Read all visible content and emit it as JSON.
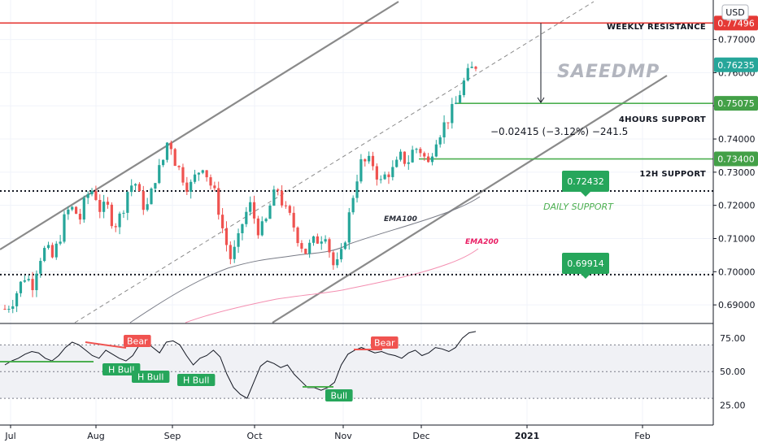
{
  "currency": "USD",
  "watermark": "SAEEDMP",
  "colors": {
    "bull": "#26a69a",
    "bear": "#ef5350",
    "resistance": "#e53935",
    "support": "#4caf50",
    "channel": "#8a8a8a",
    "ema100": "#787b86",
    "ema200": "#f48fb1",
    "rsi": "#131722",
    "tag_green": "#26a65b",
    "tag_red": "#f05350"
  },
  "levels": {
    "weekly_resistance": {
      "label": "WEEKLY RESISTANCE",
      "price_label": "0.77496",
      "value": 0.77496
    },
    "four_hours_support": {
      "label": "4HOURS SUPPORT",
      "price_label": "0.75075",
      "value": 0.75075
    },
    "twelve_h_support": {
      "label": "12H SUPPORT",
      "price_label": "0.73400",
      "value": 0.734
    },
    "last_price": {
      "price_label": "0.76235",
      "value": 0.76235
    },
    "daily_support": {
      "label": "DAILY SUPPORT",
      "tag": "0.72432",
      "value": 0.72432
    },
    "lower_support": {
      "tag": "0.69914",
      "value": 0.69914
    }
  },
  "measure": {
    "text": "−0.02415 (−3.12%) −241.5"
  },
  "ema_labels": {
    "ema100": "EMA100",
    "ema200": "EMA200"
  },
  "rsi_labels": [
    {
      "text": "Bear",
      "type": "bear"
    },
    {
      "text": "H Bull",
      "type": "bull"
    },
    {
      "text": "H Bull",
      "type": "bull"
    },
    {
      "text": "H Bull",
      "type": "bull"
    },
    {
      "text": "Bull",
      "type": "bull"
    },
    {
      "text": "Bear",
      "type": "bear"
    }
  ],
  "chart_data": [
    {
      "type": "candlestick",
      "x_ticks": [
        "Jul",
        "Aug",
        "Sep",
        "Oct",
        "Nov",
        "Dec",
        "2021",
        "Feb"
      ],
      "y_ticks": [
        "0.77000",
        "0.76000",
        "0.75000",
        "0.74000",
        "0.73000",
        "0.72000",
        "0.71000",
        "0.70000",
        "0.69000"
      ],
      "ylim": [
        0.6844,
        0.7819
      ],
      "close_path": [
        0.6888,
        0.6908,
        0.695,
        0.699,
        0.696,
        0.704,
        0.707,
        0.704,
        0.71,
        0.718,
        0.719,
        0.716,
        0.723,
        0.725,
        0.7185,
        0.7195,
        0.714,
        0.717,
        0.7245,
        0.7275,
        0.7205,
        0.7195,
        0.7285,
        0.732,
        0.741,
        0.733,
        0.729,
        0.725,
        0.729,
        0.7325,
        0.727,
        0.722,
        0.712,
        0.704,
        0.7075,
        0.7165,
        0.72,
        0.713,
        0.713,
        0.721,
        0.725,
        0.7185,
        0.7155,
        0.71,
        0.706,
        0.7085,
        0.71,
        0.712,
        0.702,
        0.702,
        0.712,
        0.723,
        0.7325,
        0.733,
        0.7325,
        0.7265,
        0.73,
        0.7305,
        0.7345,
        0.733,
        0.7375,
        0.7365,
        0.732,
        0.74,
        0.743,
        0.7465,
        0.75,
        0.756,
        0.76,
        0.7623
      ],
      "price_labels": [
        "0.77496",
        "0.76235",
        "0.75075",
        "0.73400"
      ]
    },
    {
      "type": "line",
      "name": "RSI",
      "y_ticks": [
        "75.00",
        "50.00",
        "25.00"
      ],
      "ylim": [
        10,
        86
      ],
      "bands": [
        70,
        50,
        30
      ],
      "values": [
        55,
        58,
        60,
        63,
        65,
        64,
        60,
        58,
        62,
        68,
        72,
        70,
        66,
        62,
        60,
        66,
        63,
        60,
        58,
        62,
        70,
        72,
        68,
        64,
        72,
        73,
        70,
        62,
        55,
        60,
        62,
        66,
        61,
        48,
        38,
        33,
        30,
        42,
        54,
        58,
        56,
        53,
        55,
        48,
        43,
        38,
        38,
        36,
        38,
        42,
        55,
        63,
        66,
        68,
        66,
        64,
        65,
        63,
        62,
        60,
        64,
        66,
        62,
        64,
        68,
        67,
        65,
        68,
        75,
        79,
        80
      ]
    }
  ]
}
